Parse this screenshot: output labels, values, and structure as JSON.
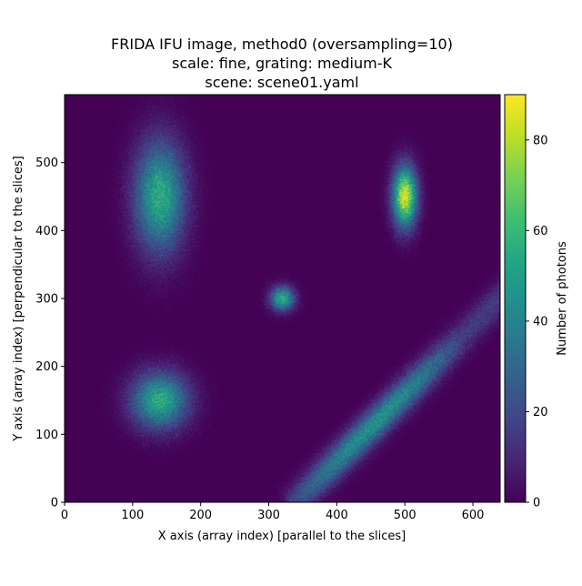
{
  "chart_data": {
    "type": "heatmap",
    "title_lines": [
      "FRIDA IFU image, method0 (oversampling=10)",
      "scale: fine, grating: medium-K",
      "scene: scene01.yaml"
    ],
    "xlabel": "X axis (array index)  [parallel to the slices]",
    "ylabel": "Y axis (array index)  [perpendicular to the slices]",
    "xlim": [
      0,
      640
    ],
    "ylim": [
      0,
      600
    ],
    "xticks": [
      0,
      100,
      200,
      300,
      400,
      500,
      600
    ],
    "yticks": [
      0,
      100,
      200,
      300,
      400,
      500
    ],
    "colormap": "viridis",
    "colorbar": {
      "label": "Number of photons",
      "range": [
        0,
        90
      ],
      "ticks": [
        0,
        20,
        40,
        60,
        80
      ]
    },
    "background_level": 0,
    "sources": [
      {
        "shape": "ellipse",
        "x": 140,
        "y": 450,
        "sigma_x": 25,
        "sigma_y": 55,
        "peak": 55
      },
      {
        "shape": "ellipse",
        "x": 500,
        "y": 450,
        "sigma_x": 12,
        "sigma_y": 30,
        "peak": 85
      },
      {
        "shape": "ellipse",
        "x": 320,
        "y": 300,
        "sigma_x": 12,
        "sigma_y": 12,
        "peak": 55
      },
      {
        "shape": "ellipse",
        "x": 140,
        "y": 150,
        "sigma_x": 28,
        "sigma_y": 28,
        "peak": 55
      },
      {
        "shape": "line",
        "x_start": 340,
        "y_start": 0,
        "x_end": 640,
        "y_end": 300,
        "width_sigma": 14,
        "peak": 45
      }
    ]
  }
}
